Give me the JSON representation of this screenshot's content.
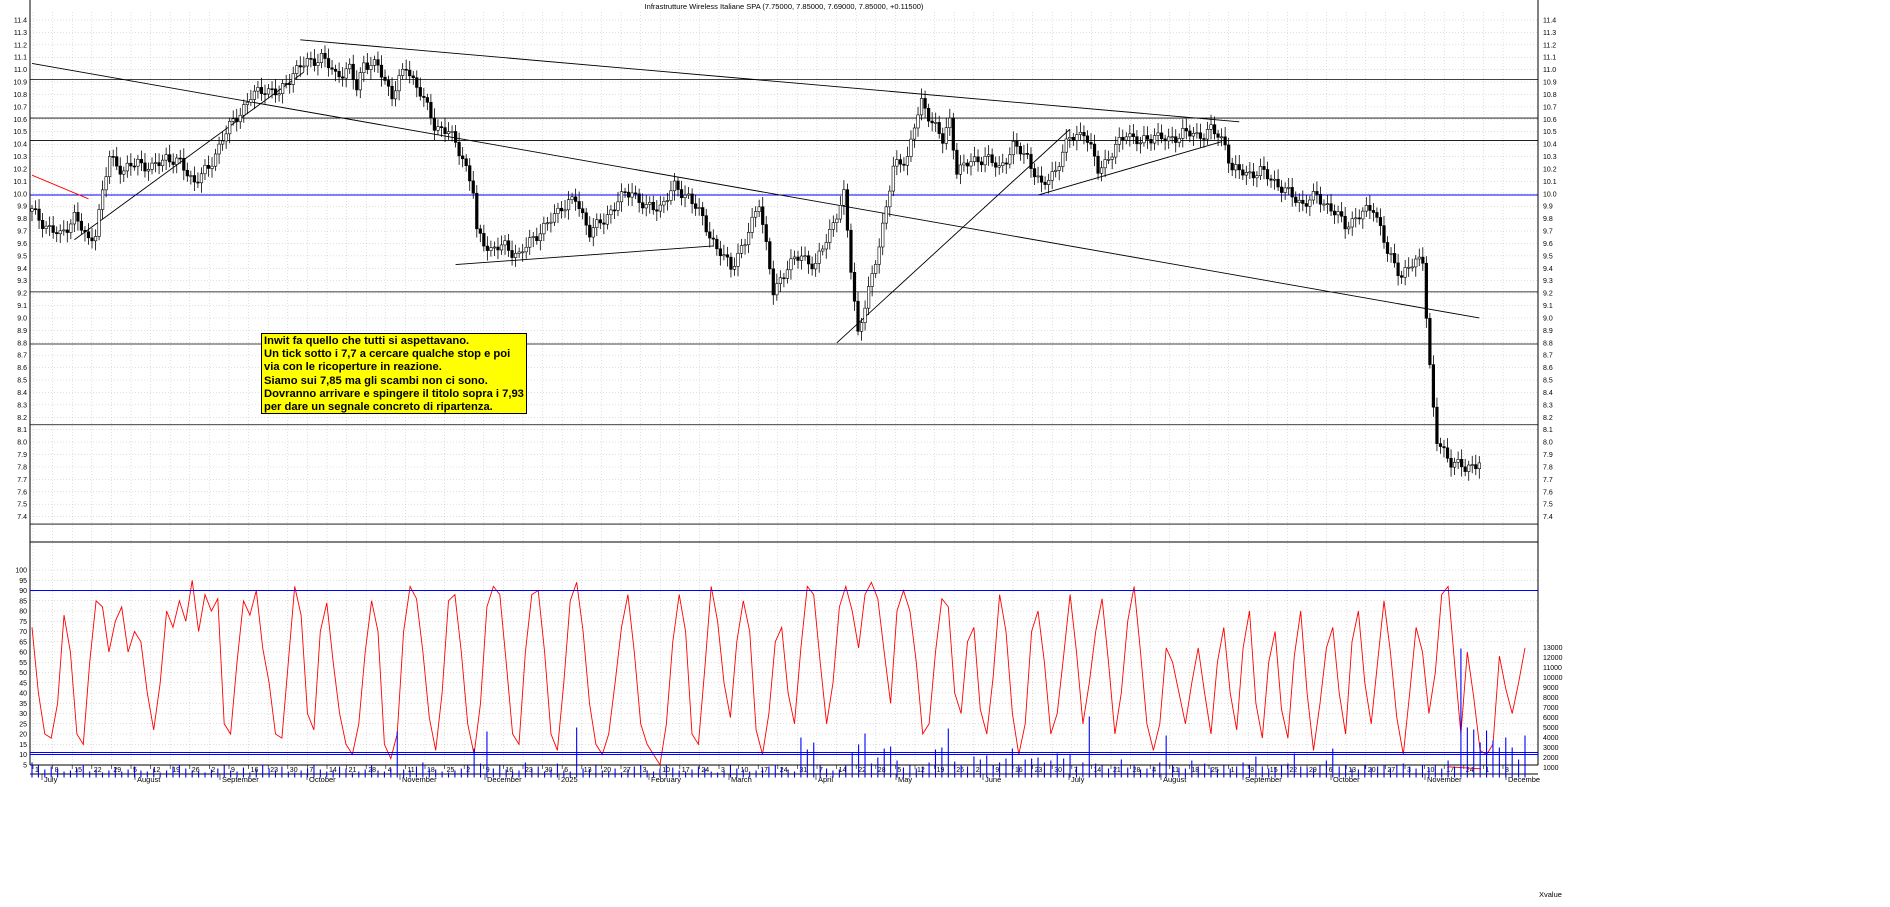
{
  "chart_data": [
    {
      "type": "candlestick",
      "title": "Infrastrutture Wireless Italiane SPA (7.75000, 7.85000, 7.69000, 7.85000, +0.11500)",
      "ylim": [
        7.3,
        11.4
      ],
      "y_ticks": [
        "11.4",
        "11.3",
        "11.2",
        "11.1",
        "11.0",
        "10.9",
        "10.8",
        "10.7",
        "10.6",
        "10.5",
        "10.4",
        "10.3",
        "10.2",
        "10.1",
        "10.0",
        "9.9",
        "9.8",
        "9.7",
        "9.6",
        "9.5",
        "9.4",
        "9.3",
        "9.2",
        "9.1",
        "9.0",
        "8.9",
        "8.8",
        "8.7",
        "8.6",
        "8.5",
        "8.4",
        "8.3",
        "8.2",
        "8.1",
        "8.0",
        "7.9",
        "7.8",
        "7.7",
        "7.6",
        "7.5",
        "7.4"
      ],
      "grid": true,
      "close_path": [
        [
          0,
          9.86
        ],
        [
          4,
          9.74
        ],
        [
          8,
          9.66
        ],
        [
          12,
          9.82
        ],
        [
          16,
          9.62
        ],
        [
          18,
          9.7
        ],
        [
          22,
          10.3
        ],
        [
          26,
          10.18
        ],
        [
          30,
          10.26
        ],
        [
          34,
          10.2
        ],
        [
          38,
          10.3
        ],
        [
          42,
          10.24
        ],
        [
          46,
          10.1
        ],
        [
          50,
          10.2
        ],
        [
          54,
          10.45
        ],
        [
          58,
          10.62
        ],
        [
          62,
          10.78
        ],
        [
          66,
          10.85
        ],
        [
          70,
          10.8
        ],
        [
          74,
          10.98
        ],
        [
          78,
          11.06
        ],
        [
          82,
          11.1
        ],
        [
          86,
          10.96
        ],
        [
          90,
          11.0
        ],
        [
          92,
          10.85
        ],
        [
          94,
          11.06
        ],
        [
          98,
          11.02
        ],
        [
          102,
          10.8
        ],
        [
          106,
          11.02
        ],
        [
          110,
          10.82
        ],
        [
          114,
          10.55
        ],
        [
          118,
          10.5
        ],
        [
          122,
          10.3
        ],
        [
          125,
          10.02
        ],
        [
          126,
          9.68
        ],
        [
          130,
          9.55
        ],
        [
          134,
          9.58
        ],
        [
          138,
          9.5
        ],
        [
          142,
          9.65
        ],
        [
          146,
          9.75
        ],
        [
          150,
          9.9
        ],
        [
          154,
          9.95
        ],
        [
          158,
          9.7
        ],
        [
          162,
          9.78
        ],
        [
          166,
          9.95
        ],
        [
          170,
          10.02
        ],
        [
          174,
          9.88
        ],
        [
          178,
          9.9
        ],
        [
          182,
          10.05
        ],
        [
          186,
          9.98
        ],
        [
          190,
          9.8
        ],
        [
          194,
          9.55
        ],
        [
          198,
          9.42
        ],
        [
          202,
          9.6
        ],
        [
          206,
          9.95
        ],
        [
          210,
          9.2
        ],
        [
          214,
          9.42
        ],
        [
          218,
          9.5
        ],
        [
          222,
          9.42
        ],
        [
          226,
          9.7
        ],
        [
          230,
          9.98
        ],
        [
          232,
          9.4
        ],
        [
          234,
          8.88
        ],
        [
          238,
          9.32
        ],
        [
          240,
          9.6
        ],
        [
          244,
          10.2
        ],
        [
          248,
          10.3
        ],
        [
          250,
          10.55
        ],
        [
          252,
          10.72
        ],
        [
          256,
          10.55
        ],
        [
          258,
          10.42
        ],
        [
          260,
          10.58
        ],
        [
          262,
          10.2
        ],
        [
          266,
          10.25
        ],
        [
          270,
          10.3
        ],
        [
          274,
          10.2
        ],
        [
          278,
          10.38
        ],
        [
          282,
          10.3
        ],
        [
          286,
          10.05
        ],
        [
          290,
          10.2
        ],
        [
          294,
          10.45
        ],
        [
          298,
          10.5
        ],
        [
          302,
          10.2
        ],
        [
          306,
          10.32
        ],
        [
          310,
          10.5
        ],
        [
          314,
          10.4
        ],
        [
          318,
          10.48
        ],
        [
          322,
          10.42
        ],
        [
          326,
          10.5
        ],
        [
          330,
          10.46
        ],
        [
          334,
          10.52
        ],
        [
          338,
          10.4
        ],
        [
          340,
          10.2
        ],
        [
          344,
          10.16
        ],
        [
          348,
          10.18
        ],
        [
          352,
          10.1
        ],
        [
          356,
          10.0
        ],
        [
          360,
          9.92
        ],
        [
          364,
          9.98
        ],
        [
          368,
          9.88
        ],
        [
          372,
          9.75
        ],
        [
          376,
          9.82
        ],
        [
          380,
          9.9
        ],
        [
          382,
          9.72
        ],
        [
          384,
          9.52
        ],
        [
          388,
          9.35
        ],
        [
          392,
          9.45
        ],
        [
          394,
          9.48
        ],
        [
          396,
          8.6
        ],
        [
          397,
          8.25
        ],
        [
          398,
          8.0
        ],
        [
          402,
          7.85
        ],
        [
          406,
          7.78
        ],
        [
          410,
          7.85
        ]
      ]
    },
    {
      "type": "line",
      "name": "Stochastic oscillator",
      "ylim": [
        0,
        100
      ],
      "y_ticks": [
        "100",
        "95",
        "90",
        "85",
        "80",
        "75",
        "70",
        "65",
        "60",
        "55",
        "50",
        "45",
        "40",
        "35",
        "30",
        "25",
        "20",
        "15",
        "10",
        "5"
      ],
      "reference_lines": [
        90,
        10
      ],
      "values": [
        72,
        40,
        20,
        18,
        35,
        78,
        60,
        20,
        15,
        55,
        85,
        82,
        60,
        75,
        82,
        60,
        70,
        65,
        40,
        22,
        45,
        80,
        72,
        85,
        75,
        95,
        70,
        88,
        80,
        86,
        25,
        20,
        55,
        85,
        78,
        90,
        62,
        45,
        20,
        18,
        55,
        92,
        78,
        30,
        22,
        70,
        84,
        55,
        30,
        15,
        10,
        25,
        60,
        85,
        70,
        15,
        8,
        20,
        70,
        92,
        86,
        60,
        28,
        12,
        40,
        85,
        88,
        60,
        25,
        10,
        35,
        82,
        92,
        88,
        55,
        20,
        15,
        60,
        88,
        90,
        60,
        20,
        12,
        45,
        85,
        94,
        70,
        35,
        15,
        10,
        20,
        45,
        72,
        88,
        60,
        25,
        15,
        10,
        5,
        25,
        65,
        88,
        70,
        20,
        15,
        52,
        92,
        75,
        45,
        28,
        65,
        85,
        70,
        22,
        10,
        30,
        65,
        72,
        40,
        25,
        62,
        92,
        88,
        55,
        25,
        45,
        82,
        92,
        80,
        62,
        88,
        94,
        86,
        60,
        35,
        80,
        90,
        80,
        55,
        20,
        25,
        60,
        86,
        82,
        40,
        30,
        65,
        72,
        32,
        20,
        48,
        88,
        70,
        30,
        10,
        25,
        70,
        80,
        55,
        20,
        30,
        58,
        88,
        60,
        25,
        45,
        70,
        86,
        55,
        20,
        40,
        75,
        92,
        60,
        25,
        12,
        25,
        62,
        55,
        40,
        25,
        45,
        62,
        40,
        20,
        55,
        72,
        40,
        22,
        62,
        80,
        35,
        18,
        55,
        70,
        32,
        18,
        58,
        80,
        40,
        12,
        35,
        62,
        72,
        40,
        20,
        65,
        80,
        45,
        25,
        55,
        85,
        60,
        28,
        10,
        40,
        72,
        60,
        30,
        50,
        88,
        92,
        55,
        20,
        60,
        38,
        12,
        10,
        15,
        58,
        42,
        30,
        45,
        62
      ]
    },
    {
      "type": "bar",
      "name": "Volume",
      "ylim": [
        0,
        13000
      ],
      "y_ticks": [
        "13000",
        "12000",
        "11000",
        "10000",
        "9000",
        "8000",
        "7000",
        "6000",
        "5000",
        "4000",
        "3000",
        "2000",
        "1000"
      ],
      "reference_line": 2500,
      "values": [
        1500,
        1200,
        800,
        1100,
        900,
        600,
        700,
        900,
        1300,
        600,
        800,
        500,
        700,
        1000,
        600,
        800,
        1100,
        700,
        600,
        900,
        500,
        700,
        1100,
        1300,
        900,
        700,
        600,
        500,
        800,
        900,
        1200,
        700,
        600,
        1000,
        500,
        800,
        1300,
        900,
        700,
        1100,
        600,
        500,
        700,
        900,
        1200,
        800,
        600,
        700,
        1100,
        900,
        500,
        600,
        800,
        1300,
        700,
        600,
        900,
        4600,
        800,
        700,
        1100,
        1500,
        900,
        800,
        600,
        500,
        700,
        900,
        1200,
        2900,
        1400,
        4600,
        900,
        1200,
        800,
        600,
        700,
        1500,
        900,
        1100,
        600,
        800,
        1400,
        700,
        600,
        5000,
        900,
        800,
        1200,
        700,
        600,
        900,
        500,
        800,
        1100,
        1300,
        700,
        600,
        900,
        1200,
        1000,
        700,
        600,
        800,
        1100,
        900,
        600,
        500,
        700,
        1200,
        900,
        800,
        600,
        700,
        900,
        1100,
        1300,
        1000,
        800,
        600,
        4000,
        2800,
        3500,
        1200,
        900,
        700,
        800,
        1300,
        2500,
        3300,
        4400,
        1400,
        2000,
        2900,
        3100,
        1700,
        1000,
        1200,
        900,
        1100,
        1500,
        2800,
        3000,
        4900,
        1600,
        1300,
        1100,
        2100,
        1800,
        2200,
        1200,
        1500,
        1900,
        2900,
        1300,
        1800,
        1900,
        2000,
        1500,
        1700,
        2400,
        1900,
        2300,
        1100,
        1500,
        6100,
        1400,
        1200,
        900,
        1100,
        1800,
        1000,
        1300,
        800,
        900,
        1100,
        1500,
        4200,
        1200,
        1000,
        900,
        1700,
        1100,
        1400,
        1000,
        800,
        1200,
        900,
        1100,
        1500,
        1200,
        2100,
        1100,
        900,
        1000,
        1300,
        1400,
        2400,
        1100,
        1000,
        900,
        1200,
        1700,
        2900,
        1100,
        1300,
        900,
        800,
        1200,
        1000,
        1100,
        1300,
        900,
        1200,
        1400,
        1100,
        900,
        1300,
        1000,
        1200,
        900,
        1700,
        1100,
        12900,
        5000,
        4800,
        3500,
        4700,
        3700,
        3000,
        4000,
        3000,
        1800,
        4200
      ]
    }
  ],
  "x_axis": {
    "months": [
      "July",
      "August",
      "September",
      "October",
      "November",
      "December",
      "2025",
      "February",
      "March",
      "April",
      "May",
      "June",
      "July",
      "August",
      "September",
      "October",
      "November",
      "Decembe"
    ],
    "days": [
      "1",
      "8",
      "15",
      "22",
      "29",
      "5",
      "12",
      "19",
      "26",
      "2",
      "9",
      "16",
      "23",
      "30",
      "7",
      "14",
      "21",
      "28",
      "4",
      "11",
      "18",
      "25",
      "2",
      "9",
      "16",
      "23",
      "30",
      "6",
      "13",
      "20",
      "27",
      "3",
      "10",
      "17",
      "24",
      "3",
      "10",
      "17",
      "24",
      "31",
      "7",
      "14",
      "22",
      "28",
      "5",
      "12",
      "19",
      "26",
      "2",
      "9",
      "16",
      "23",
      "30",
      "7",
      "14",
      "21",
      "28",
      "4",
      "11",
      "18",
      "25",
      "1",
      "8",
      "15",
      "22",
      "29",
      "6",
      "13",
      "20",
      "27",
      "3",
      "10",
      "17",
      "24",
      "1",
      "8"
    ]
  },
  "annotation": {
    "lines": [
      "Inwit fa quello che tutti si aspettavano.",
      "Un tick sotto i 7,7 a cercare qualche stop e poi",
      "via con le ricoperture in reazione.",
      "Siamo sui 7,85 ma gli scambi non ci sono.",
      "Dovranno arrivare e spingere il titolo sopra i 7,93",
      "per dare un segnale concreto di ripartenza."
    ]
  },
  "corner_label": "Xvalue",
  "colors": {
    "candle": "#000000",
    "trendline": "#000000",
    "short_trendline": "#ff0000",
    "horizontal_support": "#0000ff",
    "oscillator_line": "#ff0000",
    "volume_bar": "#0000ff",
    "annotation_bg": "#ffff00",
    "grid": "#b0b0b0"
  }
}
